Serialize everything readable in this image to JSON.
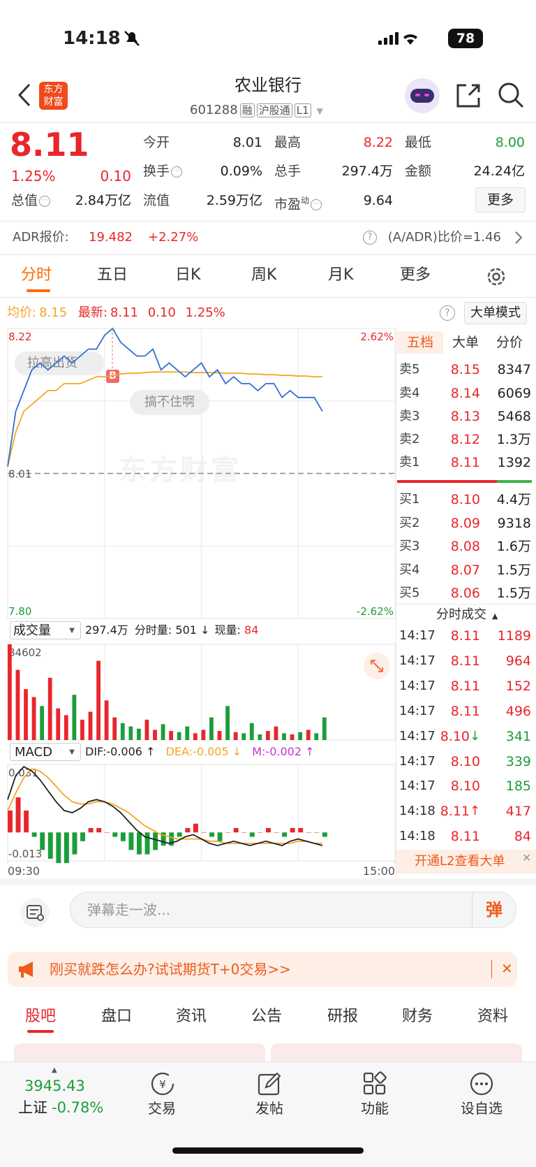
{
  "status_bar": {
    "time": "14:18",
    "battery": "78"
  },
  "header": {
    "logo": [
      "东方",
      "财富"
    ],
    "title": "农业银行",
    "code": "601288",
    "tags": [
      "融",
      "沪股通",
      "L1"
    ]
  },
  "quote": {
    "price": "8.11",
    "change_pct": "1.25%",
    "change": "0.10",
    "fields": [
      {
        "label": "今开",
        "value": "8.01"
      },
      {
        "label": "最高",
        "value": "8.22"
      },
      {
        "label": "最低",
        "value": "8.00"
      },
      {
        "label": "换手",
        "value": "0.09%"
      },
      {
        "label": "总手",
        "value": "297.4万"
      },
      {
        "label": "金额",
        "value": "24.24亿"
      },
      {
        "label": "总值",
        "value": "2.84万亿"
      },
      {
        "label": "流值",
        "value": "2.59万亿"
      },
      {
        "label": "市盈",
        "sup": "动",
        "value": "9.64"
      }
    ],
    "more": "更多"
  },
  "adr": {
    "label": "ADR报价:",
    "price": "19.482",
    "change": "+2.27%",
    "ratio": "(A/ADR)比价=1.46"
  },
  "tabs": [
    "分时",
    "五日",
    "日K",
    "周K",
    "月K",
    "更多"
  ],
  "info": {
    "avg_label": "均价:",
    "avg": "8.15",
    "latest_label": "最新:",
    "latest": "8.11",
    "change": "0.10",
    "pct": "1.25%",
    "mode": "大单模式"
  },
  "annotations": {
    "bubbles": [
      "拉高出货",
      "搞不住啊"
    ],
    "marker": "B",
    "watermark": "东方财富"
  },
  "volume_header": {
    "selector": "成交量",
    "total": "297.4万",
    "minute_label": "分时量:",
    "minute": "501",
    "minute_arrow": "↓",
    "current_label": "现量:",
    "current": "84"
  },
  "macd_header": {
    "selector": "MACD",
    "dif": "DIF:-0.006 ↑",
    "dea": "DEA:-0.005 ↓",
    "m": "M:-0.002 ↑"
  },
  "chart_data": [
    {
      "type": "line",
      "x": [
        0,
        5,
        10,
        15,
        20,
        25,
        30,
        35,
        40,
        45,
        50,
        55,
        60,
        65,
        70,
        75,
        80,
        85,
        90,
        95,
        100,
        105,
        110,
        115,
        120,
        125,
        130,
        135,
        140,
        145,
        150,
        155,
        160,
        165,
        170,
        175,
        180,
        185,
        190,
        195
      ],
      "xlim": [
        0,
        240
      ],
      "ylim": [
        7.8,
        8.22
      ],
      "yticks": [
        {
          "value": 8.22,
          "label": "8.22"
        },
        {
          "value": 8.01,
          "label": "8.01"
        },
        {
          "value": 7.8,
          "label": "7.80"
        }
      ],
      "y2lim": [
        -2.62,
        2.62
      ],
      "y2ticks": [
        {
          "value": 2.62,
          "label": "2.62%"
        },
        {
          "value": -2.62,
          "label": "-2.62%"
        }
      ],
      "series": [
        {
          "color": "#2f6fd6",
          "values": [
            8.02,
            8.1,
            8.13,
            8.16,
            8.17,
            8.16,
            8.17,
            8.18,
            8.17,
            8.18,
            8.19,
            8.19,
            8.21,
            8.22,
            8.2,
            8.19,
            8.18,
            8.18,
            8.19,
            8.16,
            8.17,
            8.16,
            8.15,
            8.16,
            8.17,
            8.15,
            8.16,
            8.14,
            8.15,
            8.14,
            8.14,
            8.13,
            8.14,
            8.14,
            8.12,
            8.13,
            8.12,
            8.12,
            8.12,
            8.1
          ]
        },
        {
          "color": "#f5a623",
          "values": [
            8.02,
            8.07,
            8.1,
            8.11,
            8.12,
            8.13,
            8.13,
            8.14,
            8.14,
            8.14,
            8.145,
            8.15,
            8.15,
            8.152,
            8.154,
            8.155,
            8.155,
            8.156,
            8.157,
            8.157,
            8.157,
            8.157,
            8.157,
            8.156,
            8.156,
            8.156,
            8.156,
            8.155,
            8.155,
            8.155,
            8.154,
            8.154,
            8.153,
            8.153,
            8.152,
            8.152,
            8.151,
            8.151,
            8.15,
            8.15
          ]
        }
      ]
    },
    {
      "type": "bar",
      "x": [
        0,
        5,
        10,
        15,
        20,
        25,
        30,
        35,
        40,
        45,
        50,
        55,
        60,
        65,
        70,
        75,
        80,
        85,
        90,
        95,
        100,
        105,
        110,
        115,
        120,
        125,
        130,
        135,
        140,
        145,
        150,
        155,
        160,
        165,
        170,
        175,
        180,
        185,
        190,
        195
      ],
      "xlim": [
        0,
        240
      ],
      "ylim": [
        0,
        84602
      ],
      "yticks": [
        84602
      ],
      "values": [
        84602,
        62000,
        45000,
        38000,
        30000,
        55000,
        28000,
        22000,
        40000,
        18000,
        25000,
        70000,
        35000,
        20000,
        15000,
        12000,
        10000,
        18000,
        9000,
        14000,
        8000,
        7000,
        12000,
        6000,
        9000,
        20000,
        8000,
        30000,
        7000,
        6000,
        15000,
        5000,
        8000,
        12000,
        6000,
        5000,
        7000,
        9000,
        6000,
        20000
      ],
      "colors": [
        "#e8262b",
        "#e8262b",
        "#e8262b",
        "#e8262b",
        "#1a9e3a",
        "#e8262b",
        "#e8262b",
        "#e8262b",
        "#1a9e3a",
        "#e8262b",
        "#e8262b",
        "#e8262b",
        "#e8262b",
        "#e8262b",
        "#1a9e3a",
        "#1a9e3a",
        "#1a9e3a",
        "#e8262b",
        "#e8262b",
        "#1a9e3a",
        "#e8262b",
        "#1a9e3a",
        "#1a9e3a",
        "#e8262b",
        "#e8262b",
        "#1a9e3a",
        "#e8262b",
        "#1a9e3a",
        "#e8262b",
        "#1a9e3a",
        "#1a9e3a",
        "#1a9e3a",
        "#e8262b",
        "#e8262b",
        "#1a9e3a",
        "#e8262b",
        "#1a9e3a",
        "#e8262b",
        "#1a9e3a",
        "#1a9e3a"
      ]
    },
    {
      "type": "macd",
      "x": [
        0,
        5,
        10,
        15,
        20,
        25,
        30,
        35,
        40,
        45,
        50,
        55,
        60,
        65,
        70,
        75,
        80,
        85,
        90,
        95,
        100,
        105,
        110,
        115,
        120,
        125,
        130,
        135,
        140,
        145,
        150,
        155,
        160,
        165,
        170,
        175,
        180,
        185,
        190,
        195
      ],
      "xlim": [
        0,
        240
      ],
      "xticks": [
        {
          "value": 0,
          "label": "09:30"
        },
        {
          "value": 240,
          "label": "15:00"
        }
      ],
      "ylim": [
        -0.013,
        0.031
      ],
      "yticks": [
        0.031,
        -0.013
      ],
      "series": [
        {
          "color": "#222222",
          "values": [
            0.015,
            0.026,
            0.03,
            0.028,
            0.024,
            0.019,
            0.014,
            0.01,
            0.009,
            0.011,
            0.014,
            0.015,
            0.014,
            0.012,
            0.009,
            0.005,
            0.001,
            -0.002,
            -0.003,
            -0.004,
            -0.005,
            -0.004,
            -0.002,
            -0.001,
            -0.003,
            -0.005,
            -0.006,
            -0.005,
            -0.004,
            -0.005,
            -0.006,
            -0.005,
            -0.004,
            -0.005,
            -0.006,
            -0.004,
            -0.003,
            -0.004,
            -0.005,
            -0.006
          ]
        },
        {
          "color": "#f5a623",
          "values": [
            0.01,
            0.018,
            0.025,
            0.029,
            0.028,
            0.025,
            0.021,
            0.017,
            0.014,
            0.013,
            0.013,
            0.014,
            0.014,
            0.013,
            0.011,
            0.009,
            0.006,
            0.003,
            0.001,
            -0.001,
            -0.002,
            -0.003,
            -0.003,
            -0.003,
            -0.003,
            -0.004,
            -0.004,
            -0.005,
            -0.005,
            -0.005,
            -0.005,
            -0.005,
            -0.005,
            -0.005,
            -0.005,
            -0.005,
            -0.004,
            -0.004,
            -0.005,
            -0.005
          ]
        },
        {
          "up_color": "#e8262b",
          "down_color": "#1a9e3a",
          "values": [
            0.01,
            0.016,
            0.01,
            -0.002,
            -0.008,
            -0.012,
            -0.014,
            -0.014,
            -0.01,
            -0.004,
            0.002,
            0.002,
            0,
            -0.002,
            -0.004,
            -0.008,
            -0.01,
            -0.01,
            -0.008,
            -0.006,
            -0.006,
            -0.002,
            0.002,
            0.004,
            0,
            -0.002,
            -0.004,
            0,
            0.002,
            0,
            -0.002,
            0,
            0.002,
            0,
            -0.002,
            0.002,
            0.002,
            0,
            0,
            -0.002
          ]
        }
      ]
    }
  ],
  "order_book": {
    "tabs": [
      "五档",
      "大单",
      "分价"
    ],
    "sell": [
      {
        "label": "卖5",
        "price": "8.15",
        "volume": "8347"
      },
      {
        "label": "卖4",
        "price": "8.14",
        "volume": "6069"
      },
      {
        "label": "卖3",
        "price": "8.13",
        "volume": "5468"
      },
      {
        "label": "卖2",
        "price": "8.12",
        "volume": "1.3万"
      },
      {
        "label": "卖1",
        "price": "8.11",
        "volume": "1392"
      }
    ],
    "buy": [
      {
        "label": "买1",
        "price": "8.10",
        "volume": "4.4万"
      },
      {
        "label": "买2",
        "price": "8.09",
        "volume": "9318"
      },
      {
        "label": "买3",
        "price": "8.08",
        "volume": "1.6万"
      },
      {
        "label": "买4",
        "price": "8.07",
        "volume": "1.5万"
      },
      {
        "label": "买5",
        "price": "8.06",
        "volume": "1.5万"
      }
    ]
  },
  "trades": {
    "title": "分时成交",
    "rows": [
      {
        "time": "14:17",
        "price": "8.11",
        "volume": "1189"
      },
      {
        "time": "14:17",
        "price": "8.11",
        "volume": "964"
      },
      {
        "time": "14:17",
        "price": "8.11",
        "volume": "152"
      },
      {
        "time": "14:17",
        "price": "8.11",
        "volume": "496"
      },
      {
        "time": "14:17",
        "price": "8.10",
        "arrow": "↓",
        "volume": "341"
      },
      {
        "time": "14:17",
        "price": "8.10",
        "volume": "339"
      },
      {
        "time": "14:17",
        "price": "8.10",
        "volume": "185"
      },
      {
        "time": "14:18",
        "price": "8.11",
        "arrow": "↑",
        "volume": "417"
      },
      {
        "time": "14:18",
        "price": "8.11",
        "volume": "84"
      }
    ],
    "volume_colors": [
      "#e8262b",
      "#e8262b",
      "#e8262b",
      "#e8262b",
      "#1a9e3a",
      "#1a9e3a",
      "#1a9e3a",
      "#e8262b",
      "#e8262b"
    ],
    "l2": "开通L2查看大单"
  },
  "comment": {
    "placeholder": "弹幕走一波...",
    "button": "弹"
  },
  "banner": "刚买就跌怎么办?试试期货T+0交易>>",
  "bottom_tabs": [
    "股吧",
    "盘口",
    "资讯",
    "公告",
    "研报",
    "财务",
    "资料"
  ],
  "nav": {
    "index_value": "3945.43",
    "index_name": "上证",
    "index_change": "-0.78%",
    "items": [
      "交易",
      "发帖",
      "功能",
      "设自选"
    ]
  }
}
